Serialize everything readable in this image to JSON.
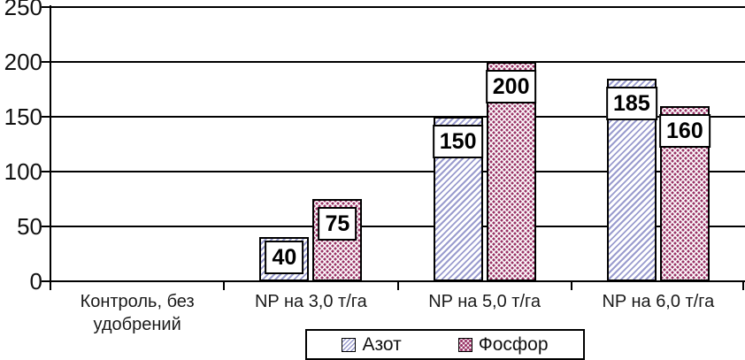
{
  "chart_data": {
    "type": "bar",
    "title": "",
    "categories": [
      "Контроль, без удобрений",
      "NP на 3,0 т/га",
      "NP на 5,0 т/га",
      "NP на 6,0 т/га"
    ],
    "series": [
      {
        "name": "Азот",
        "values": [
          0,
          40,
          150,
          185
        ],
        "pattern": "diagonal-hatch",
        "pattern_color": "#9a9cce"
      },
      {
        "name": "Фосфор",
        "values": [
          0,
          75,
          200,
          160
        ],
        "pattern": "dot-grid",
        "pattern_color": "#993366"
      }
    ],
    "ylim": [
      0,
      250
    ],
    "yticks": [
      0,
      50,
      100,
      150,
      200,
      250
    ],
    "xlabel": "",
    "ylabel": "",
    "grid": true,
    "data_labels": true,
    "legend": {
      "position": "bottom",
      "entries": [
        "Азот",
        "Фосфор"
      ]
    },
    "axis_color": "#000000",
    "background_color": "#ffffff"
  }
}
